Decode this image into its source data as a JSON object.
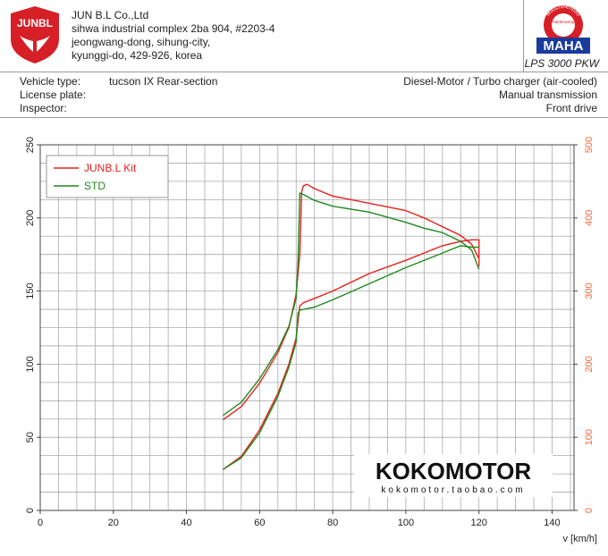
{
  "header": {
    "logo_text": "JUNBL",
    "company_lines": [
      "JUN B.L Co.,Ltd",
      "sihwa industrial complex 2ba 904, #2203-4",
      "jeongwang-dong, sihung-city,",
      "kyunggi-do, 429-926, korea"
    ],
    "maha_top": "Maschinenbau",
    "maha_bottom": "Haldenwang",
    "maha_brand": "MAHA",
    "model": "LPS 3000 PKW"
  },
  "info": {
    "labels": [
      "Vehicle type:",
      "License plate:",
      "Inspector:"
    ],
    "values": [
      "tucson IX Rear-section",
      "",
      ""
    ],
    "right": [
      "Diesel-Motor / Turbo charger (air-cooled)",
      "Manual transmission",
      "Front drive"
    ]
  },
  "watermark": {
    "brand": "KOKOMOTOR",
    "url": "kokomotor.taobao.com"
  },
  "colors": {
    "kit": "#e8201c",
    "std": "#1e8a1e",
    "right_axis": "#ff6633"
  },
  "chart_data": {
    "type": "line",
    "xlabel": "v [km/h]",
    "x_ticks": [
      0,
      20,
      40,
      60,
      80,
      100,
      120,
      140
    ],
    "xlim": [
      0,
      146
    ],
    "ylim_left": [
      0,
      250
    ],
    "left_ticks": [
      0,
      50,
      100,
      150,
      200,
      250
    ],
    "ylim_right": [
      0,
      500
    ],
    "right_ticks": [
      0,
      100,
      200,
      300,
      400,
      500
    ],
    "grid": true,
    "legend": "top-left",
    "series": [
      {
        "name": "JUNB.L Kit",
        "color": "#e8201c",
        "axis": "left",
        "curves": [
          [
            [
              50,
              62
            ],
            [
              55,
              71
            ],
            [
              60,
              87
            ],
            [
              65,
              108
            ],
            [
              68,
              125
            ],
            [
              70,
              148
            ],
            [
              71,
              175
            ],
            [
              71.5,
              218
            ],
            [
              72,
              222
            ],
            [
              73,
              223
            ],
            [
              75,
              220
            ],
            [
              80,
              215
            ],
            [
              90,
              210
            ],
            [
              100,
              205
            ],
            [
              105,
              200
            ],
            [
              110,
              194
            ],
            [
              115,
              188
            ],
            [
              118,
              182
            ],
            [
              120,
              172
            ]
          ],
          [
            [
              50,
              28
            ],
            [
              55,
              37
            ],
            [
              60,
              55
            ],
            [
              65,
              80
            ],
            [
              68,
              100
            ],
            [
              70,
              118
            ],
            [
              71,
              140
            ],
            [
              72,
              142
            ],
            [
              75,
              145
            ],
            [
              80,
              150
            ],
            [
              90,
              162
            ],
            [
              100,
              171
            ],
            [
              110,
              181
            ],
            [
              115,
              184
            ],
            [
              118,
              185
            ],
            [
              120,
              185
            ],
            [
              120,
              167
            ]
          ]
        ]
      },
      {
        "name": "STD",
        "color": "#1e8a1e",
        "axis": "left",
        "curves": [
          [
            [
              50,
              65
            ],
            [
              55,
              74
            ],
            [
              60,
              90
            ],
            [
              65,
              110
            ],
            [
              68,
              126
            ],
            [
              70,
              145
            ],
            [
              70.5,
              170
            ],
            [
              71,
              217
            ],
            [
              72,
              216
            ],
            [
              75,
              212
            ],
            [
              80,
              208
            ],
            [
              90,
              204
            ],
            [
              100,
              197
            ],
            [
              105,
              193
            ],
            [
              110,
              190
            ],
            [
              115,
              184
            ],
            [
              118,
              178
            ],
            [
              120,
              165
            ]
          ],
          [
            [
              50,
              28
            ],
            [
              55,
              36
            ],
            [
              60,
              53
            ],
            [
              65,
              78
            ],
            [
              68,
              98
            ],
            [
              70,
              115
            ],
            [
              70.5,
              135
            ],
            [
              71,
              137
            ],
            [
              75,
              139
            ],
            [
              80,
              144
            ],
            [
              90,
              155
            ],
            [
              100,
              166
            ],
            [
              110,
              176
            ],
            [
              115,
              181
            ],
            [
              118,
              180
            ],
            [
              120,
              180
            ]
          ]
        ]
      }
    ]
  }
}
